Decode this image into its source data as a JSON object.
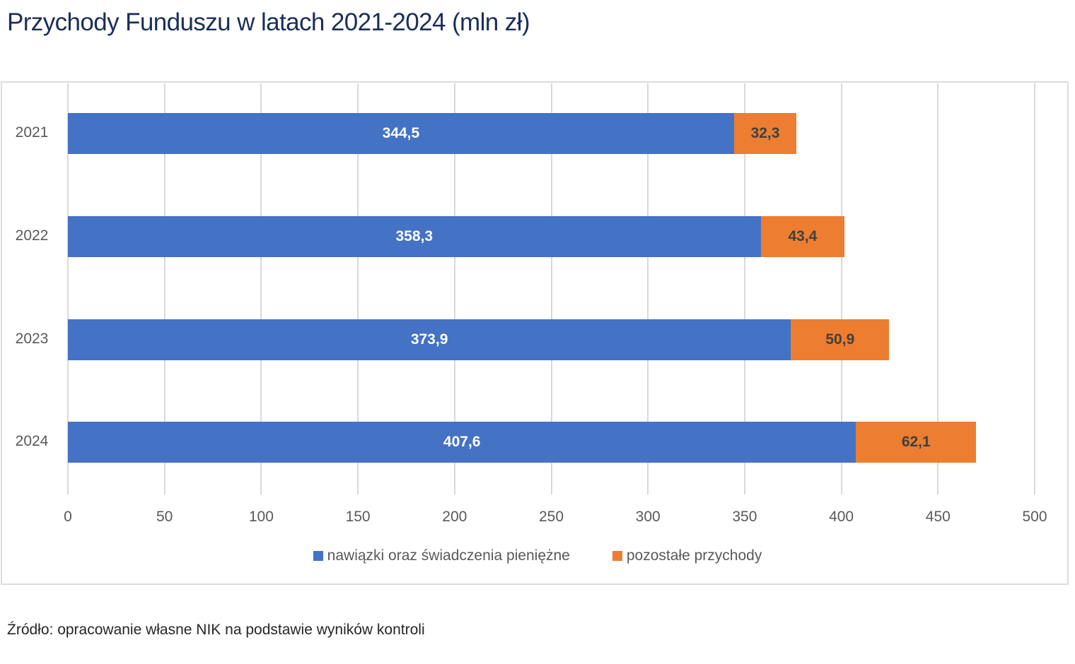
{
  "title": "Przychody Funduszu w latach 2021-2024 (mln zł)",
  "source": "Źródło: opracowanie własne NIK na podstawie wyników kontroli",
  "colors": {
    "series0": "#4472c4",
    "series1": "#ed7d31",
    "title": "#1a2f57",
    "grid": "#d9d9d9",
    "axis_text": "#595959"
  },
  "legend": [
    {
      "label": "nawiązki oraz świadczenia pieniężne",
      "color": "#4472c4"
    },
    {
      "label": "pozostałe przychody",
      "color": "#ed7d31"
    }
  ],
  "x_ticks": [
    "0",
    "50",
    "100",
    "150",
    "200",
    "250",
    "300",
    "350",
    "400",
    "450",
    "500"
  ],
  "categories": [
    "2021",
    "2022",
    "2023",
    "2024"
  ],
  "labels": {
    "series0": [
      "344,5",
      "358,3",
      "373,9",
      "407,6"
    ],
    "series1": [
      "32,3",
      "43,4",
      "50,9",
      "62,1"
    ]
  },
  "chart_data": {
    "type": "bar",
    "orientation": "horizontal",
    "stacked": true,
    "title": "Przychody Funduszu w latach 2021-2024 (mln zł)",
    "xlabel": "",
    "ylabel": "",
    "categories": [
      "2021",
      "2022",
      "2023",
      "2024"
    ],
    "series": [
      {
        "name": "nawiązki oraz świadczenia pieniężne",
        "values": [
          344.5,
          358.3,
          373.9,
          407.6
        ],
        "color": "#4472c4"
      },
      {
        "name": "pozostałe przychody",
        "values": [
          32.3,
          43.4,
          50.9,
          62.1
        ],
        "color": "#ed7d31"
      }
    ],
    "xlim": [
      0,
      500
    ],
    "x_ticks": [
      0,
      50,
      100,
      150,
      200,
      250,
      300,
      350,
      400,
      450,
      500
    ],
    "grid": true,
    "legend_position": "bottom",
    "data_labels": true,
    "source": "Źródło: opracowanie własne NIK na podstawie wyników kontroli"
  }
}
